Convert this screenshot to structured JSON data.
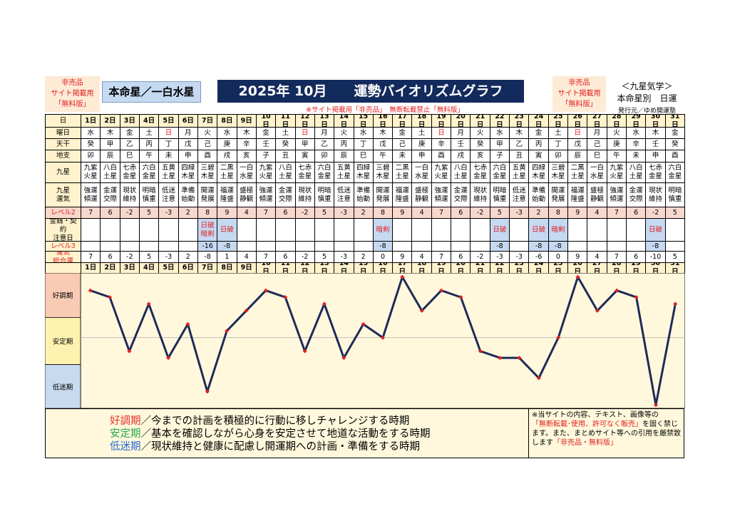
{
  "header": {
    "left_badge": [
      "非売品",
      "サイト掲載用",
      "「無料版」"
    ],
    "honmei": "本命星／一白水星",
    "title": "2025年 10月　　運勢バイオリズムグラフ",
    "notice": "※サイト掲載用「非売品」　無断転載禁止「無料版」",
    "right_badge": [
      "非売品",
      "サイト掲載用",
      "「無料版」"
    ],
    "right_info": [
      "＜九星気学＞",
      "本命星別　日運",
      "発行元／ゆめ開運塾"
    ]
  },
  "table": {
    "row_labels": [
      "日",
      "曜日",
      "天干",
      "地支",
      "九星",
      "九星\n運気",
      "レベル2",
      "金銭・契約\n注意日",
      "レベル3",
      "運気\n総合運"
    ],
    "days": [
      "1日",
      "2日",
      "3日",
      "4日",
      "5日",
      "6日",
      "7日",
      "8日",
      "9日",
      "10日",
      "11日",
      "12日",
      "13日",
      "14日",
      "15日",
      "16日",
      "17日",
      "18日",
      "19日",
      "20日",
      "21日",
      "22日",
      "23日",
      "24日",
      "25日",
      "26日",
      "27日",
      "28日",
      "29日",
      "30日",
      "31日"
    ],
    "weekdays": [
      "水",
      "木",
      "金",
      "土",
      "日",
      "月",
      "火",
      "水",
      "木",
      "金",
      "土",
      "日",
      "月",
      "火",
      "水",
      "木",
      "金",
      "土",
      "日",
      "月",
      "火",
      "水",
      "木",
      "金",
      "土",
      "日",
      "月",
      "火",
      "水",
      "木",
      "金"
    ],
    "tenkan": [
      "癸",
      "甲",
      "乙",
      "丙",
      "丁",
      "戊",
      "己",
      "庚",
      "辛",
      "壬",
      "癸",
      "甲",
      "乙",
      "丙",
      "丁",
      "戊",
      "己",
      "庚",
      "辛",
      "壬",
      "癸",
      "甲",
      "乙",
      "丙",
      "丁",
      "戊",
      "己",
      "庚",
      "辛",
      "壬",
      "癸"
    ],
    "chishi": [
      "卯",
      "辰",
      "巳",
      "午",
      "未",
      "申",
      "酉",
      "戌",
      "亥",
      "子",
      "丑",
      "寅",
      "卯",
      "辰",
      "巳",
      "午",
      "未",
      "申",
      "酉",
      "戌",
      "亥",
      "子",
      "丑",
      "寅",
      "卯",
      "辰",
      "巳",
      "午",
      "未",
      "申",
      "酉"
    ],
    "kyusei": [
      "九紫火星",
      "八白土星",
      "七赤金星",
      "六白金星",
      "五黄土星",
      "四緑木星",
      "三碧木星",
      "二黒土星",
      "一白水星",
      "九紫火星",
      "八白土星",
      "七赤金星",
      "六白金星",
      "五黄土星",
      "四緑木星",
      "三碧木星",
      "二黒土星",
      "一白水星",
      "九紫火星",
      "八白土星",
      "七赤金星",
      "六白金星",
      "五黄土星",
      "四緑木星",
      "三碧木星",
      "二黒土星",
      "一白水星",
      "九紫火星",
      "八白土星",
      "七赤金星",
      "六白金星"
    ],
    "unki": [
      "強運傾運",
      "金運交際",
      "現状維持",
      "明暗慎重",
      "低迷注意",
      "準備始動",
      "開運発展",
      "福運隆盛",
      "盛極静観",
      "強運傾運",
      "金運交際",
      "現状維持",
      "明暗慎重",
      "低迷注意",
      "準備始動",
      "開運発展",
      "福運隆盛",
      "盛極静観",
      "強運傾運",
      "金運交際",
      "現状維持",
      "明暗慎重",
      "低迷注意",
      "準備始動",
      "開運発展",
      "福運隆盛",
      "盛極静観",
      "強運傾運",
      "金運交際",
      "現状維持",
      "明暗慎重"
    ],
    "level2": [
      7,
      6,
      -2,
      5,
      -3,
      2,
      8,
      9,
      4,
      7,
      6,
      -2,
      5,
      -3,
      2,
      8,
      9,
      4,
      7,
      6,
      -2,
      5,
      -3,
      2,
      8,
      9,
      4,
      7,
      6,
      -2,
      5
    ],
    "money": [
      null,
      null,
      null,
      null,
      null,
      null,
      "日破\n暗剣",
      "日破",
      null,
      null,
      null,
      null,
      null,
      null,
      null,
      "暗剣",
      null,
      null,
      null,
      null,
      null,
      "日破",
      null,
      "日破",
      "暗剣",
      null,
      null,
      null,
      null,
      "日破",
      null
    ],
    "level3": [
      null,
      null,
      null,
      null,
      null,
      null,
      -16,
      -8,
      null,
      null,
      null,
      null,
      null,
      null,
      null,
      -8,
      null,
      null,
      null,
      null,
      null,
      -8,
      null,
      -8,
      -8,
      null,
      null,
      null,
      null,
      -8,
      null
    ]
  },
  "chart_data": {
    "type": "line",
    "color": "#1f2a5a",
    "marker_color": "#e02020",
    "values": [
      7,
      6,
      -2,
      5,
      -3,
      2,
      -8,
      1,
      4,
      7,
      6,
      -2,
      5,
      -3,
      2,
      0,
      9,
      4,
      7,
      6,
      -2,
      -3,
      -3,
      -6,
      0,
      9,
      4,
      7,
      6,
      -10,
      5
    ],
    "ylim": [
      -10.5,
      9.6
    ],
    "baseline": 0,
    "bands": [
      {
        "label": "好調期",
        "range": [
          3,
          9.6
        ],
        "color": "#f9cbb4"
      },
      {
        "label": "安定期",
        "range": [
          -4,
          3
        ],
        "color": "#fff2b0"
      },
      {
        "label": "低迷期",
        "range": [
          -10.5,
          -4
        ],
        "color": "#c7daf0"
      }
    ]
  },
  "legend": [
    {
      "term": "好調期",
      "text": "／今までの計画を積極的に行動に移しチャレンジする時期",
      "color": "#e8302a"
    },
    {
      "term": "安定期",
      "text": "／基本を確認しながら心身を安定させて地道な活動をする時期",
      "color": "#2aa84a"
    },
    {
      "term": "低迷期",
      "text": "／現状維持と健康に配慮し開運期への計画・準備をする時期",
      "color": "#2a6ad0"
    }
  ],
  "note": [
    "※当サイトの内容、テキスト、画像等の",
    "「無断転載･使用、許可なく販売」",
    "を固く禁じます。また、まとめサイト等への引用を厳禁致します",
    "「非売品・無料版」"
  ]
}
